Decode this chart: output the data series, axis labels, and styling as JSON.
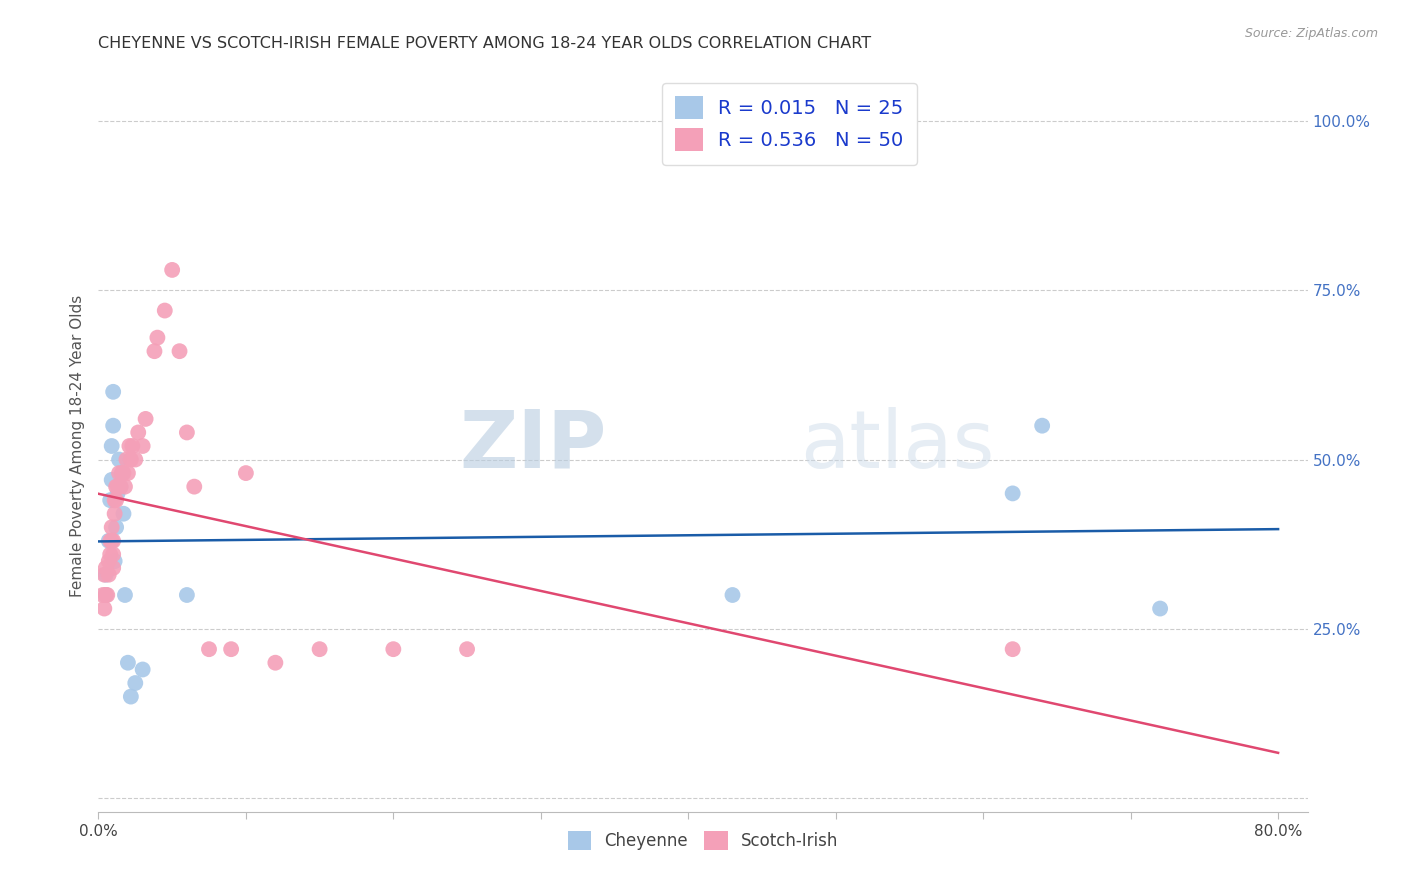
{
  "title": "CHEYENNE VS SCOTCH-IRISH FEMALE POVERTY AMONG 18-24 YEAR OLDS CORRELATION CHART",
  "source": "Source: ZipAtlas.com",
  "ylabel": "Female Poverty Among 18-24 Year Olds",
  "xlim": [
    0.0,
    0.82
  ],
  "ylim": [
    -0.02,
    1.06
  ],
  "cheyenne_R": 0.015,
  "cheyenne_N": 25,
  "scotch_irish_R": 0.536,
  "scotch_irish_N": 50,
  "cheyenne_color": "#a8c8e8",
  "scotch_irish_color": "#f4a0b8",
  "cheyenne_line_color": "#1a5ca8",
  "scotch_irish_line_color": "#e04870",
  "legend_R_color": "#1a3acc",
  "background_color": "#ffffff",
  "grid_color": "#cccccc",
  "watermark_zip": "ZIP",
  "watermark_atlas": "atlas",
  "cheyenne_x": [
    0.005,
    0.005,
    0.007,
    0.008,
    0.009,
    0.009,
    0.01,
    0.01,
    0.011,
    0.012,
    0.013,
    0.014,
    0.015,
    0.016,
    0.017,
    0.018,
    0.02,
    0.022,
    0.025,
    0.03,
    0.06,
    0.43,
    0.62,
    0.64,
    0.72
  ],
  "cheyenne_y": [
    0.3,
    0.33,
    0.38,
    0.44,
    0.47,
    0.52,
    0.55,
    0.6,
    0.35,
    0.4,
    0.45,
    0.5,
    0.46,
    0.48,
    0.42,
    0.3,
    0.2,
    0.15,
    0.17,
    0.19,
    0.3,
    0.3,
    0.45,
    0.55,
    0.28
  ],
  "scotch_irish_x": [
    0.003,
    0.004,
    0.004,
    0.005,
    0.005,
    0.006,
    0.007,
    0.007,
    0.008,
    0.008,
    0.009,
    0.009,
    0.01,
    0.01,
    0.01,
    0.011,
    0.011,
    0.012,
    0.012,
    0.013,
    0.014,
    0.014,
    0.015,
    0.016,
    0.017,
    0.018,
    0.019,
    0.02,
    0.021,
    0.022,
    0.023,
    0.025,
    0.027,
    0.03,
    0.032,
    0.038,
    0.04,
    0.045,
    0.05,
    0.055,
    0.06,
    0.065,
    0.075,
    0.09,
    0.1,
    0.12,
    0.15,
    0.2,
    0.25,
    0.62
  ],
  "scotch_irish_y": [
    0.3,
    0.28,
    0.33,
    0.3,
    0.34,
    0.3,
    0.33,
    0.35,
    0.36,
    0.38,
    0.38,
    0.4,
    0.34,
    0.36,
    0.38,
    0.42,
    0.44,
    0.44,
    0.46,
    0.46,
    0.46,
    0.48,
    0.46,
    0.48,
    0.48,
    0.46,
    0.5,
    0.48,
    0.52,
    0.5,
    0.52,
    0.5,
    0.54,
    0.52,
    0.56,
    0.66,
    0.68,
    0.72,
    0.78,
    0.66,
    0.54,
    0.46,
    0.22,
    0.22,
    0.48,
    0.2,
    0.22,
    0.22,
    0.22,
    0.22
  ]
}
